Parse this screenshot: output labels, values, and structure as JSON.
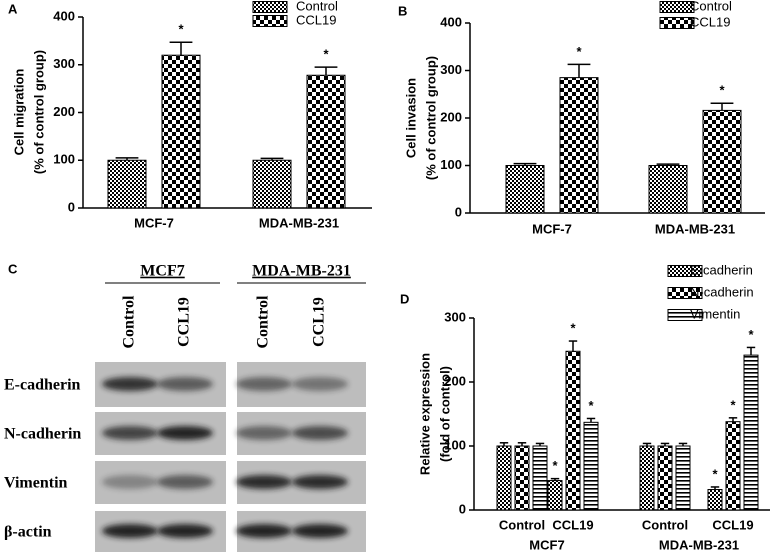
{
  "chart_data": [
    {
      "type": "bar",
      "panel": "A",
      "ylabel": [
        "Cell migration",
        "(% of control group)"
      ],
      "categories": [
        "MCF-7",
        "MDA-MB-231"
      ],
      "series": [
        {
          "name": "Control",
          "color": "#000000",
          "pattern": "fine-check",
          "values": [
            100,
            100
          ],
          "errors": [
            5,
            4
          ]
        },
        {
          "name": "CCL19",
          "color": "#000000",
          "pattern": "check",
          "values": [
            320,
            278
          ],
          "errors": [
            27,
            17
          ],
          "annotations": [
            "*",
            "*"
          ]
        }
      ],
      "ylim": [
        0,
        400
      ],
      "yticks": [
        0,
        100,
        200,
        300,
        400
      ],
      "legend": "top-right"
    },
    {
      "type": "bar",
      "panel": "B",
      "ylabel": [
        "Cell invasion",
        "(% of control group)"
      ],
      "categories": [
        "MCF-7",
        "MDA-MB-231"
      ],
      "series": [
        {
          "name": "Control",
          "color": "#000000",
          "pattern": "fine-check",
          "values": [
            100,
            100
          ],
          "errors": [
            4,
            3
          ]
        },
        {
          "name": "CCL19",
          "color": "#000000",
          "pattern": "check",
          "values": [
            285,
            216
          ],
          "errors": [
            28,
            15
          ],
          "annotations": [
            "*",
            "*"
          ]
        }
      ],
      "ylim": [
        0,
        400
      ],
      "yticks": [
        0,
        100,
        200,
        300,
        400
      ],
      "legend": "top-right"
    },
    {
      "type": "bar",
      "panel": "D",
      "ylabel": [
        "Relative expression",
        "(fold of control)"
      ],
      "categories": [
        "Control",
        "CCL19",
        "Control",
        "CCL19"
      ],
      "group_labels": [
        "MCF7",
        "MDA-MB-231"
      ],
      "series": [
        {
          "name": "E-cadherin",
          "color": "#000000",
          "pattern": "fine-check",
          "values": [
            100,
            46,
            100,
            32
          ],
          "errors": [
            5,
            3,
            4,
            4
          ],
          "annotations": [
            null,
            "*",
            null,
            "*"
          ]
        },
        {
          "name": "N-cadherin",
          "color": "#000000",
          "pattern": "check",
          "values": [
            100,
            248,
            100,
            138
          ],
          "errors": [
            5,
            16,
            4,
            6
          ],
          "annotations": [
            null,
            "*",
            null,
            "*"
          ]
        },
        {
          "name": "Vimentin",
          "color": "#000000",
          "pattern": "hstripe",
          "values": [
            100,
            137,
            100,
            242
          ],
          "errors": [
            4,
            6,
            4,
            12
          ],
          "annotations": [
            null,
            "*",
            null,
            "*"
          ]
        }
      ],
      "ylim": [
        0,
        300
      ],
      "yticks": [
        0,
        100,
        200,
        300
      ],
      "legend": "top-right"
    }
  ],
  "blot": {
    "panel": "C",
    "groups": [
      "MCF7",
      "MDA-MB-231"
    ],
    "lanes": [
      "Control",
      "CCL19",
      "Control",
      "CCL19"
    ],
    "rows": [
      "E-cadherin",
      "N-cadherin",
      "Vimentin",
      "β-actin"
    ]
  }
}
